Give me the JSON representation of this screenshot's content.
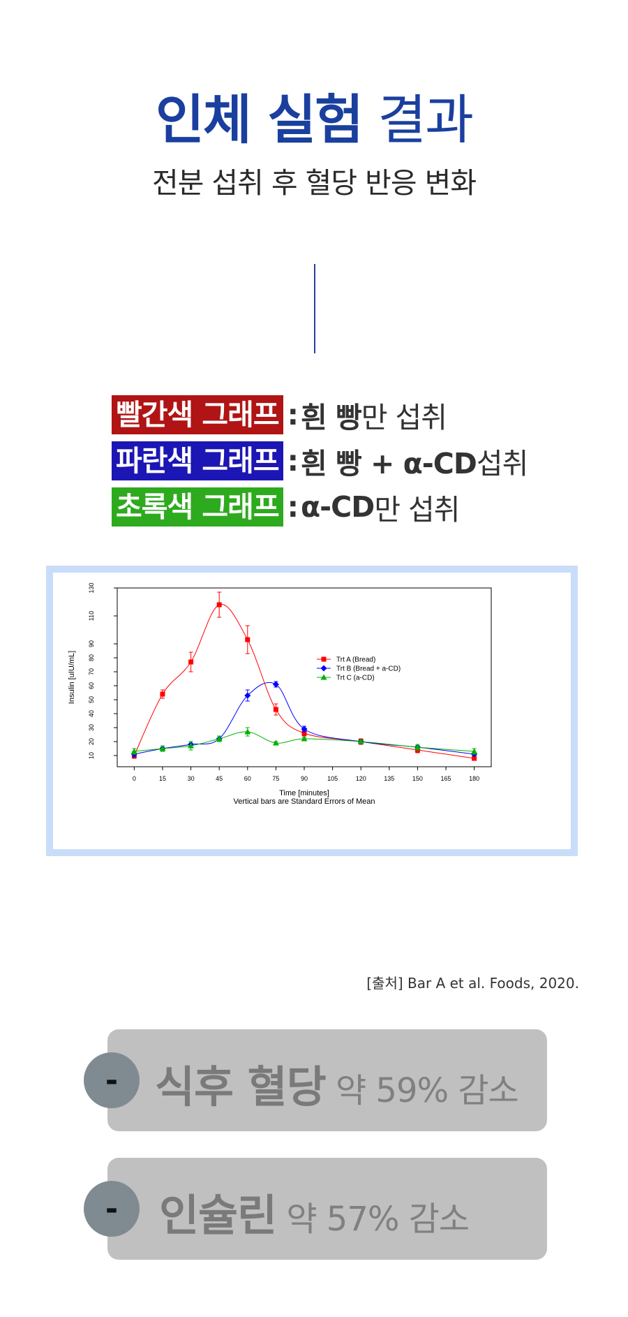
{
  "header": {
    "title_bold": "인체 실험",
    "title_light": "결과",
    "subtitle": "전분 섭취 후 혈당 반응 변화"
  },
  "legend_rows": [
    {
      "badge": "빨간색 그래프",
      "color": "#b01414",
      "sep": ":",
      "bold": "흰 빵",
      "rest": "만 섭취"
    },
    {
      "badge": "파란색 그래프",
      "color": "#1c16b4",
      "sep": ":",
      "bold": "흰 빵 + α-CD",
      "rest": " 섭취"
    },
    {
      "badge": "초록색 그래프",
      "color": "#2eaa1e",
      "sep": ":",
      "bold": "α-CD",
      "rest": "만 섭취"
    }
  ],
  "chart_data": {
    "type": "line",
    "ylabel": "Insulin [uIU/mL]",
    "xlabel": "Time [minutes]",
    "note": "Vertical bars are Standard Errors of Mean",
    "x_ticks": [
      0,
      15,
      30,
      45,
      60,
      75,
      90,
      105,
      120,
      135,
      150,
      165,
      180
    ],
    "y_ticks": [
      10,
      20,
      30,
      40,
      50,
      60,
      70,
      80,
      90,
      110,
      130
    ],
    "xlim": [
      -9,
      189
    ],
    "ylim": [
      2,
      130
    ],
    "legend_position": "right",
    "series": [
      {
        "name": "Trt A (Bread)",
        "color": "#ff0000",
        "marker": "square",
        "x": [
          0,
          15,
          30,
          45,
          60,
          75,
          90,
          120,
          150,
          180
        ],
        "y": [
          10,
          54,
          77,
          118,
          93,
          43,
          26,
          20,
          14,
          8
        ],
        "err": [
          2,
          3,
          7,
          9,
          10,
          4,
          2,
          2,
          2,
          1
        ]
      },
      {
        "name": "Trt B (Bread + a-CD)",
        "color": "#0000ff",
        "marker": "diamond",
        "x": [
          0,
          15,
          30,
          45,
          60,
          75,
          90,
          120,
          150,
          180
        ],
        "y": [
          11,
          15,
          18,
          22,
          53,
          61,
          29,
          20,
          16,
          11
        ],
        "err": [
          2,
          1,
          2,
          2,
          4,
          2,
          2,
          1,
          1,
          1
        ]
      },
      {
        "name": "Trt C (a-CD)",
        "color": "#00b000",
        "marker": "triangle",
        "x": [
          0,
          15,
          30,
          45,
          60,
          75,
          90,
          120,
          150,
          180
        ],
        "y": [
          13,
          15,
          17,
          22,
          27,
          19,
          22,
          20,
          16,
          13
        ],
        "err": [
          2,
          2,
          3,
          2,
          3,
          1,
          1,
          1,
          2,
          2
        ]
      }
    ]
  },
  "source_text": "[출처] Bar A et al. Foods, 2020.",
  "stats": [
    {
      "symbol": "-",
      "label": "식후 혈당",
      "value": "약 59% 감소"
    },
    {
      "symbol": "-",
      "label": "인슐린",
      "value": "약 57% 감소"
    }
  ]
}
